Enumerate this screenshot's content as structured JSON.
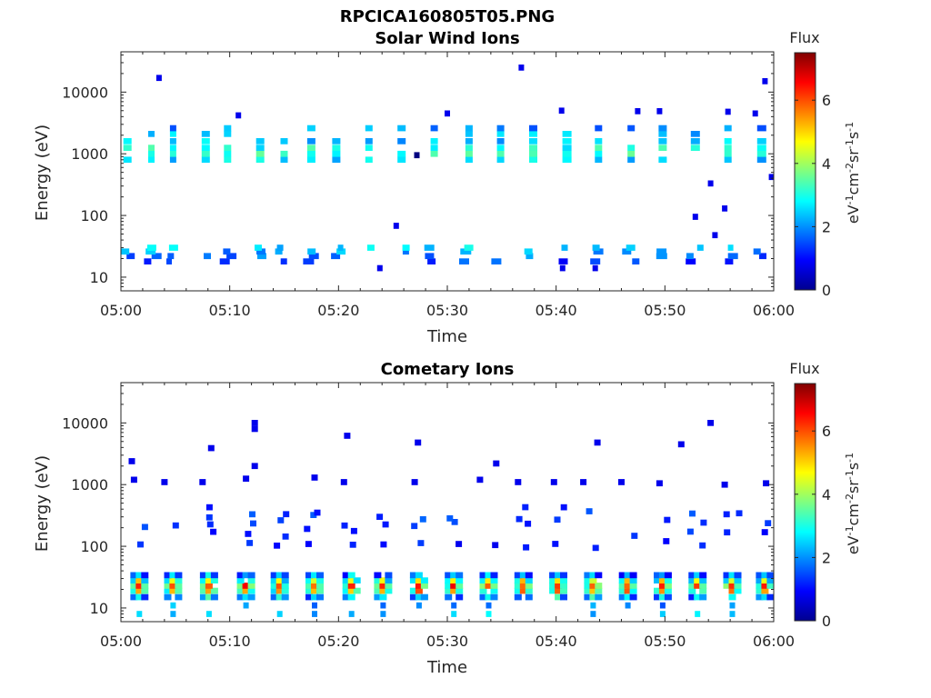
{
  "figure": {
    "filename": "RPCICA160805T05.PNG"
  },
  "colormap": "jet",
  "chart_data": [
    {
      "type": "heatmap",
      "title": "Solar Wind Ions",
      "xlabel": "Time",
      "ylabel": "Energy (eV)",
      "yscale": "log",
      "ylim": [
        6,
        45000
      ],
      "xlim": [
        "05:00",
        "06:00"
      ],
      "x_ticks": [
        "05:00",
        "05:10",
        "05:20",
        "05:30",
        "05:40",
        "05:50",
        "06:00"
      ],
      "y_ticks": [
        "10",
        "100",
        "1000",
        "10000"
      ],
      "colorbar": {
        "label": "Flux",
        "unit_label": "eV-1cm-2sr-1s-1",
        "ticks": [
          "0",
          "2",
          "4",
          "6"
        ],
        "range": [
          0,
          7.5
        ]
      },
      "scan_minutes": [
        0.6,
        2.8,
        4.8,
        7.8,
        9.8,
        12.8,
        15.0,
        17.5,
        19.8,
        22.8,
        25.8,
        28.8,
        32.0,
        34.9,
        37.9,
        41.0,
        43.9,
        46.9,
        49.8,
        52.8,
        55.8,
        58.9
      ],
      "solar_wind_band": {
        "energies_eV": [
          800,
          1000,
          1250,
          1600
        ],
        "flux_levels": [
          2.5,
          3.2,
          3.0,
          2.4
        ]
      },
      "solar_wind_upper": {
        "energies_eV": [
          2100,
          2600
        ],
        "flux_levels": [
          2.3,
          2.0
        ]
      },
      "low_energy_band": {
        "energies_eV": [
          18,
          22,
          26,
          30
        ],
        "flux_levels": [
          0.8,
          1.2,
          1.6,
          2.0
        ]
      },
      "sparse_points": [
        {
          "t": 3.5,
          "e": 17000,
          "f": 0.8
        },
        {
          "t": 36.8,
          "e": 25000,
          "f": 0.8
        },
        {
          "t": 59.2,
          "e": 15000,
          "f": 0.8
        },
        {
          "t": 10.8,
          "e": 4200,
          "f": 0.8
        },
        {
          "t": 30.0,
          "e": 4500,
          "f": 0.8
        },
        {
          "t": 40.5,
          "e": 5000,
          "f": 0.8
        },
        {
          "t": 47.5,
          "e": 4900,
          "f": 0.8
        },
        {
          "t": 49.5,
          "e": 4900,
          "f": 0.8
        },
        {
          "t": 55.8,
          "e": 4800,
          "f": 0.8
        },
        {
          "t": 58.3,
          "e": 4500,
          "f": 0.8
        },
        {
          "t": 54.2,
          "e": 330,
          "f": 0.8
        },
        {
          "t": 52.8,
          "e": 95,
          "f": 0.8
        },
        {
          "t": 55.5,
          "e": 130,
          "f": 0.8
        },
        {
          "t": 25.3,
          "e": 68,
          "f": 0.8
        },
        {
          "t": 54.6,
          "e": 48,
          "f": 0.8
        },
        {
          "t": 59.8,
          "e": 420,
          "f": 0.8
        },
        {
          "t": 27.2,
          "e": 950,
          "f": 0.0
        },
        {
          "t": 23.8,
          "e": 14,
          "f": 0.8
        },
        {
          "t": 40.6,
          "e": 14,
          "f": 0.8
        },
        {
          "t": 43.6,
          "e": 14,
          "f": 0.8
        }
      ]
    },
    {
      "type": "heatmap",
      "title": "Cometary Ions",
      "xlabel": "Time",
      "ylabel": "Energy (eV)",
      "yscale": "log",
      "ylim": [
        6,
        45000
      ],
      "xlim": [
        "05:00",
        "06:00"
      ],
      "x_ticks": [
        "05:00",
        "05:10",
        "05:20",
        "05:30",
        "05:40",
        "05:50",
        "06:00"
      ],
      "y_ticks": [
        "10",
        "100",
        "1000",
        "10000"
      ],
      "colorbar": {
        "label": "Flux",
        "unit_label": "eV-1cm-2sr-1s-1",
        "ticks": [
          "0",
          "2",
          "4",
          "6"
        ],
        "range": [
          0,
          7.5
        ]
      },
      "scan_minutes": [
        1.7,
        4.8,
        8.1,
        11.5,
        14.6,
        17.8,
        21.2,
        24.1,
        27.4,
        30.6,
        33.8,
        37.0,
        40.2,
        43.4,
        46.6,
        49.8,
        53.0,
        56.2,
        59.2
      ],
      "core_band": {
        "energies_eV": [
          15,
          19,
          23,
          28,
          34
        ],
        "flux_levels": [
          3.0,
          5.5,
          6.2,
          4.8,
          2.5
        ]
      },
      "low_tail": {
        "energies_eV": [
          8,
          11
        ],
        "flux_levels": [
          2.4,
          2.0
        ]
      },
      "mid_energy_scatter": {
        "energies_eV": [
          110,
          160,
          220,
          300,
          380
        ],
        "flux_levels": [
          0.8,
          0.9,
          1.0,
          1.1,
          1.0
        ]
      },
      "high_points": [
        {
          "t": 1.0,
          "e": 2400,
          "f": 0.8
        },
        {
          "t": 8.3,
          "e": 3900,
          "f": 0.8
        },
        {
          "t": 12.3,
          "e": 10000,
          "f": 0.8
        },
        {
          "t": 12.3,
          "e": 8000,
          "f": 0.8
        },
        {
          "t": 12.3,
          "e": 2000,
          "f": 0.8
        },
        {
          "t": 20.8,
          "e": 6200,
          "f": 0.8
        },
        {
          "t": 27.3,
          "e": 4800,
          "f": 0.8
        },
        {
          "t": 34.5,
          "e": 2200,
          "f": 0.8
        },
        {
          "t": 43.8,
          "e": 4800,
          "f": 0.8
        },
        {
          "t": 51.5,
          "e": 4500,
          "f": 0.8
        },
        {
          "t": 54.2,
          "e": 10000,
          "f": 0.8
        },
        {
          "t": 1.2,
          "e": 1200,
          "f": 0.8
        },
        {
          "t": 4.0,
          "e": 1100,
          "f": 0.8
        },
        {
          "t": 7.5,
          "e": 1100,
          "f": 0.8
        },
        {
          "t": 11.5,
          "e": 1250,
          "f": 0.8
        },
        {
          "t": 17.8,
          "e": 1300,
          "f": 0.8
        },
        {
          "t": 20.5,
          "e": 1100,
          "f": 0.8
        },
        {
          "t": 27.0,
          "e": 1100,
          "f": 0.8
        },
        {
          "t": 33.0,
          "e": 1200,
          "f": 0.8
        },
        {
          "t": 36.5,
          "e": 1100,
          "f": 0.8
        },
        {
          "t": 39.8,
          "e": 1100,
          "f": 0.8
        },
        {
          "t": 42.5,
          "e": 1100,
          "f": 0.8
        },
        {
          "t": 46.0,
          "e": 1100,
          "f": 0.8
        },
        {
          "t": 49.5,
          "e": 1050,
          "f": 0.8
        },
        {
          "t": 55.5,
          "e": 1000,
          "f": 0.8
        },
        {
          "t": 59.3,
          "e": 1050,
          "f": 0.8
        }
      ]
    }
  ]
}
